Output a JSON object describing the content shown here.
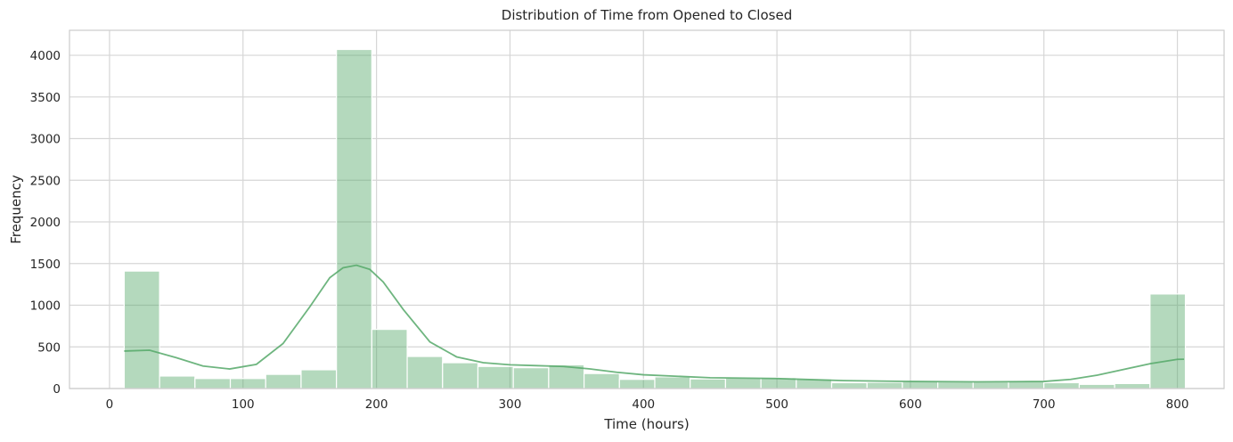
{
  "chart_data": {
    "type": "histogram",
    "title": "Distribution of Time from Opened to Closed",
    "xlabel": "Time (hours)",
    "ylabel": "Frequency",
    "xlim": [
      -30,
      835
    ],
    "ylim": [
      0,
      4300
    ],
    "xticks": [
      0,
      100,
      200,
      300,
      400,
      500,
      600,
      700,
      800
    ],
    "yticks": [
      0,
      500,
      1000,
      1500,
      2000,
      2500,
      3000,
      3500,
      4000
    ],
    "grid": true,
    "color": "#55a868",
    "bin_start": 11,
    "bin_width": 26.5,
    "counts": [
      1410,
      150,
      120,
      120,
      170,
      225,
      4070,
      710,
      385,
      310,
      265,
      250,
      285,
      180,
      110,
      140,
      115,
      125,
      130,
      115,
      70,
      75,
      85,
      80,
      80,
      90,
      70,
      50,
      60,
      1135
    ],
    "kde": {
      "x": [
        11,
        30,
        50,
        70,
        90,
        110,
        130,
        150,
        165,
        175,
        185,
        195,
        205,
        220,
        240,
        260,
        280,
        300,
        320,
        340,
        360,
        380,
        400,
        450,
        500,
        550,
        600,
        650,
        700,
        720,
        740,
        760,
        780,
        800,
        805
      ],
      "y": [
        450,
        460,
        370,
        270,
        235,
        290,
        540,
        980,
        1330,
        1450,
        1480,
        1430,
        1280,
        950,
        560,
        380,
        310,
        285,
        275,
        265,
        235,
        195,
        165,
        130,
        120,
        95,
        85,
        80,
        85,
        110,
        160,
        230,
        300,
        350,
        352
      ]
    }
  }
}
